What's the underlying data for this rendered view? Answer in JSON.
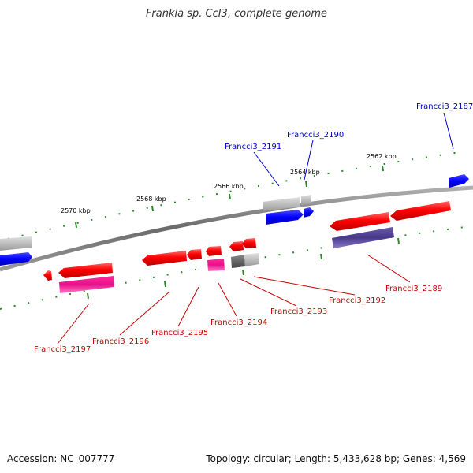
{
  "title": "Frankia sp. CcI3, complete genome",
  "footer": {
    "accession": "Accession: NC_007777",
    "summary": "Topology: circular; Length: 5,433,628 bp; Genes: 4,569"
  },
  "ticks": [
    "2570 kbp",
    "2568 kbp",
    "2566 kbp",
    "2564 kbp",
    "2562 kbp"
  ],
  "genes_top": [
    "Francci3_2191",
    "Francci3_2190",
    "Francci3_2187"
  ],
  "genes_bottom": [
    "Francci3_2197",
    "Francci3_2196",
    "Francci3_2195",
    "Francci3_2194",
    "Francci3_2193",
    "Francci3_2192",
    "Francci3_2189"
  ],
  "colors": {
    "forward_label": "#0000cc",
    "reverse_label": "#cc0000",
    "backbone": "#808080",
    "tick": "#2a8a2a"
  }
}
